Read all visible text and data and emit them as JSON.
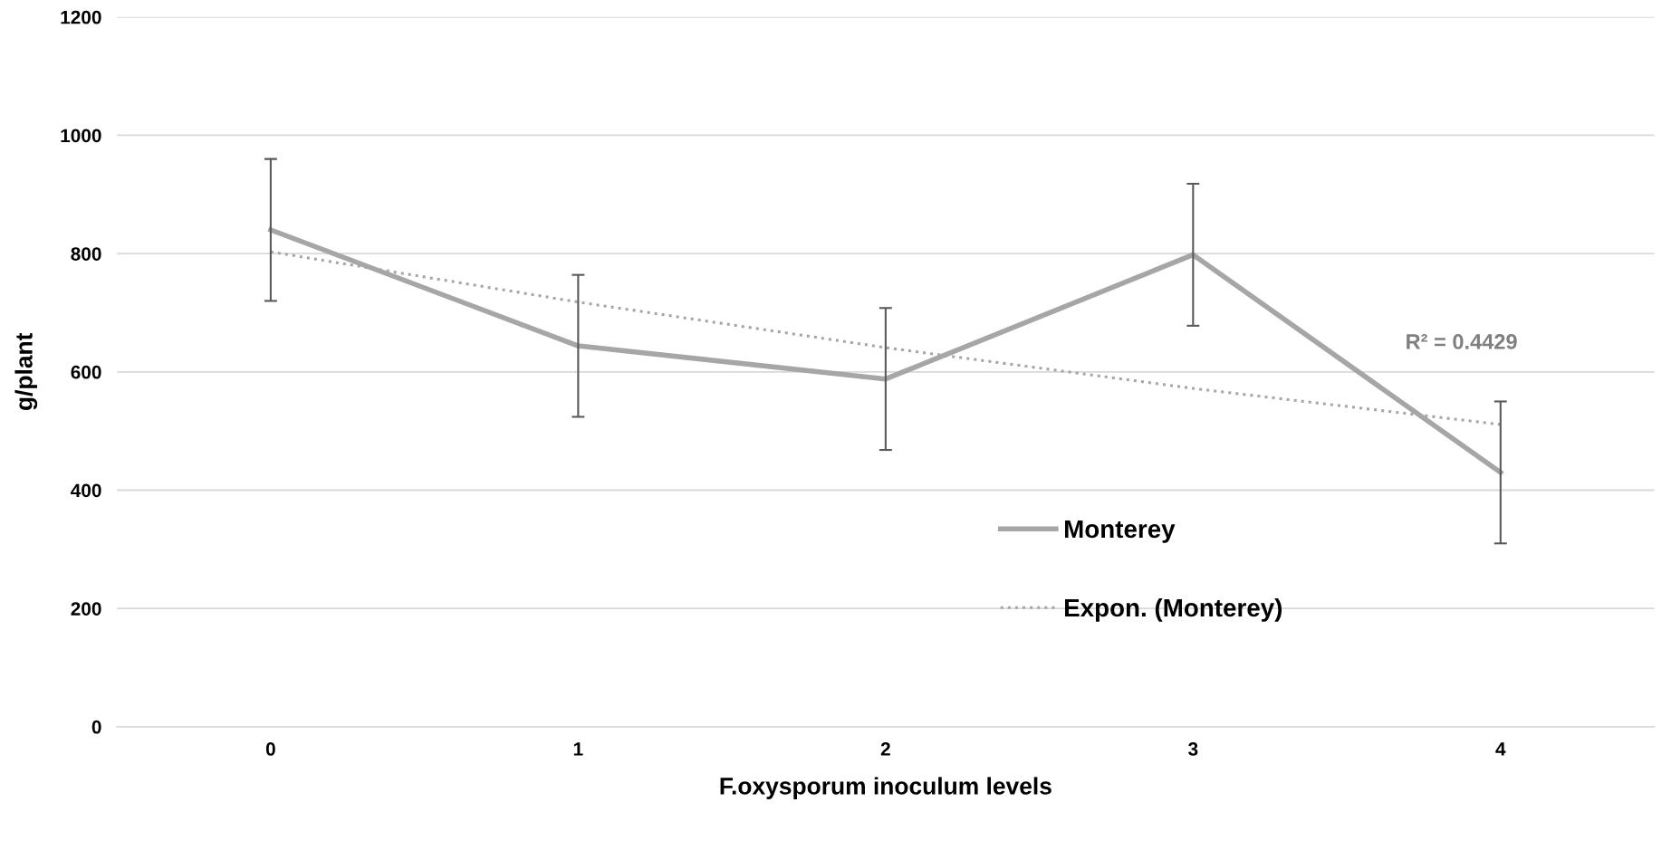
{
  "chart_data": {
    "type": "line",
    "xlabel": "F.oxysporum inoculum levels",
    "ylabel": "g/plant",
    "categories": [
      "0",
      "1",
      "2",
      "3",
      "4"
    ],
    "series": [
      {
        "name": "Monterey",
        "color": "#a6a6a6",
        "values": [
          840,
          644,
          588,
          798,
          430
        ],
        "errors": [
          120,
          120,
          120,
          120,
          120
        ],
        "line_style": "solid"
      },
      {
        "name": "Expon. (Monterey)",
        "type": "line",
        "color": "#a6a6a6",
        "values": [
          803,
          718,
          641,
          572,
          511
        ],
        "line_style": "dotted"
      }
    ],
    "annotations": [
      "R² = 0.4429"
    ],
    "ylim": [
      0,
      1200
    ],
    "yticks": [
      0,
      200,
      400,
      600,
      800,
      1000,
      1200
    ],
    "grid": "y",
    "legend": "bottom",
    "marker": "none"
  }
}
